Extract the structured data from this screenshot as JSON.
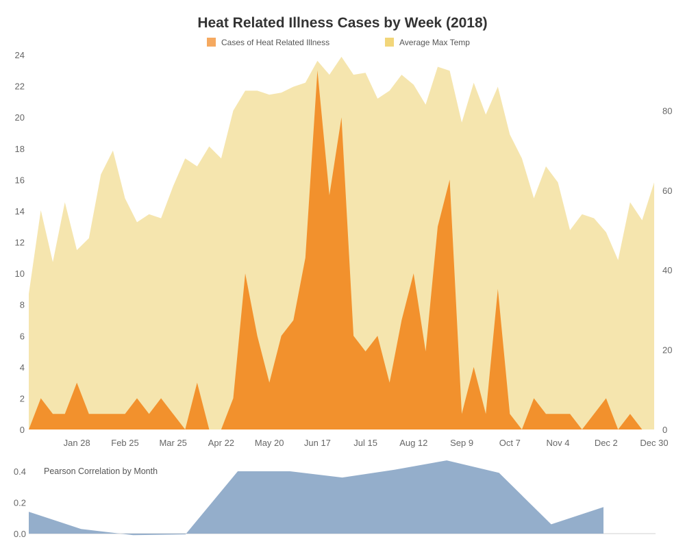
{
  "chart_data": [
    {
      "type": "area",
      "title": "Heat Related Illness Cases by Week (2018)",
      "legend": {
        "placement": "top-center",
        "entries": [
          {
            "label": "Cases of Heat Related Illness",
            "color": "#f59d4d"
          },
          {
            "label": "Average Max Temp",
            "color": "#f2d56d"
          }
        ]
      },
      "x_tick_labels": [
        "Jan 28",
        "Feb 25",
        "Mar 25",
        "Apr 22",
        "May 20",
        "Jun 17",
        "Jul 15",
        "Aug 12",
        "Sep 9",
        "Oct 7",
        "Nov 4",
        "Dec 2",
        "Dec 30"
      ],
      "left_axis": {
        "ylim": [
          0,
          24
        ],
        "ticks": [
          "0",
          "2",
          "4",
          "6",
          "8",
          "10",
          "12",
          "14",
          "16",
          "18",
          "20",
          "22",
          "24"
        ]
      },
      "right_axis": {
        "ylim": [
          0,
          94
        ],
        "ticks": [
          "0",
          "20",
          "40",
          "60",
          "80"
        ]
      },
      "grid": false,
      "series": [
        {
          "name": "Average Max Temp",
          "axis": "right",
          "color": "#f5e5ae",
          "values": [
            34,
            55,
            42,
            57,
            45,
            48,
            64,
            70,
            58,
            52,
            54,
            53,
            61,
            68,
            66,
            71,
            68,
            80,
            85,
            85,
            84,
            84.5,
            86,
            87,
            92.5,
            89,
            93.5,
            89,
            89.5,
            83,
            85,
            89,
            86.5,
            81.5,
            91,
            90,
            77,
            87,
            79,
            86,
            74,
            68,
            58,
            66,
            62,
            50,
            54,
            53,
            49.5,
            42.5,
            57,
            52.5,
            62
          ]
        },
        {
          "name": "Cases of Heat Related Illness",
          "axis": "left",
          "color": "#f2912d",
          "values": [
            0,
            2,
            1,
            1,
            3,
            1,
            1,
            1,
            1,
            2,
            1,
            2,
            1,
            0,
            3,
            0,
            0,
            2,
            10,
            6,
            3,
            6,
            7,
            11,
            23,
            15,
            20,
            6,
            5,
            6,
            3,
            7,
            10,
            5,
            13,
            16,
            1,
            4,
            1,
            9,
            1,
            0,
            2,
            1,
            1,
            1,
            0,
            1,
            2,
            0,
            1,
            0,
            0
          ]
        }
      ]
    },
    {
      "type": "area",
      "title": "Pearson Correlation by Month",
      "ylim": [
        -0.02,
        0.45
      ],
      "y_ticks": [
        "0.0",
        "0.2",
        "0.4"
      ],
      "grid": false,
      "series": [
        {
          "color": "#94aecb",
          "values": [
            0.14,
            0.03,
            -0.01,
            -0.005,
            0.4,
            0.4,
            0.36,
            0.41,
            0.47,
            0.39,
            0.06,
            0.17
          ]
        }
      ]
    }
  ]
}
